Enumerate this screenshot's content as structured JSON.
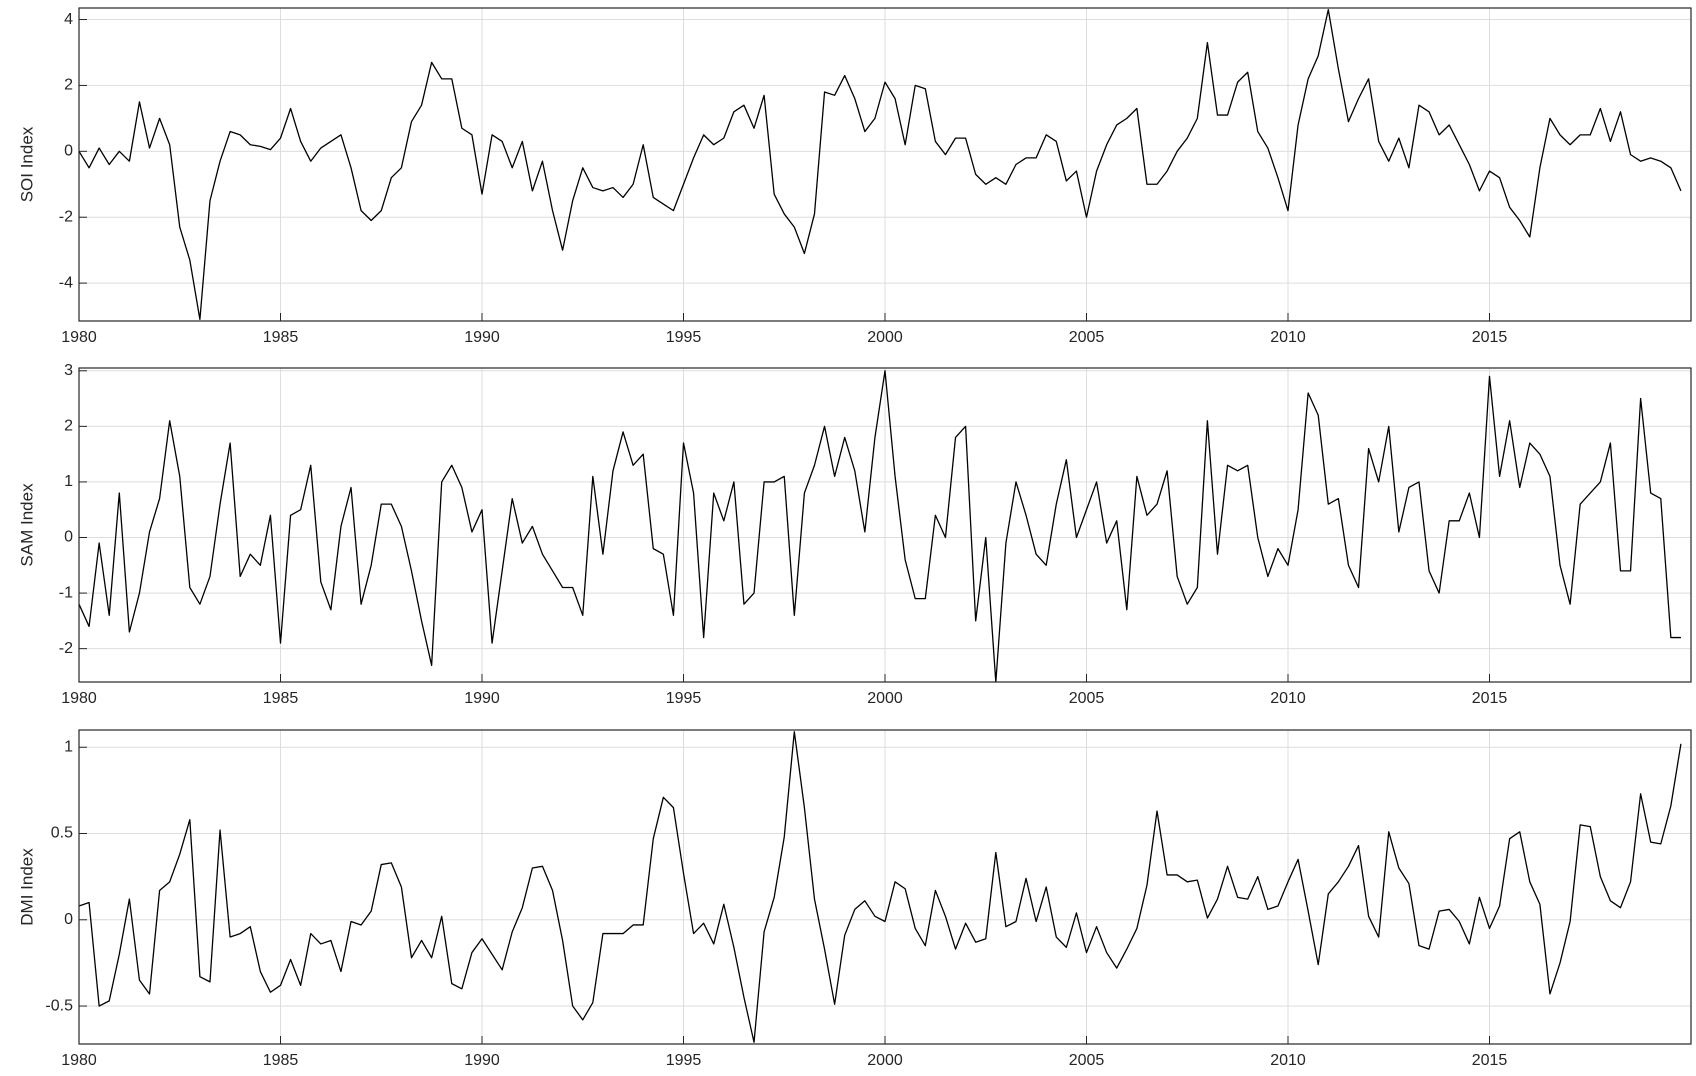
{
  "chart_data": [
    {
      "type": "line",
      "ylabel": "SOI Index",
      "color": "#000000",
      "grid": true,
      "xlim": [
        1980,
        2020
      ],
      "xticks": [
        1980,
        1985,
        1990,
        1995,
        2000,
        2005,
        2010,
        2015
      ],
      "ylim": [
        -5.15,
        4.35
      ],
      "yticks": [
        -4,
        -2,
        0,
        2,
        4
      ],
      "x": [
        1980,
        1980.25,
        1980.5,
        1980.75,
        1981,
        1981.25,
        1981.5,
        1981.75,
        1982,
        1982.25,
        1982.5,
        1982.75,
        1983,
        1983.25,
        1983.5,
        1983.75,
        1984,
        1984.25,
        1984.5,
        1984.75,
        1985,
        1985.25,
        1985.5,
        1985.75,
        1986,
        1986.25,
        1986.5,
        1986.75,
        1987,
        1987.25,
        1987.5,
        1987.75,
        1988,
        1988.25,
        1988.5,
        1988.75,
        1989,
        1989.25,
        1989.5,
        1989.75,
        1990,
        1990.25,
        1990.5,
        1990.75,
        1991,
        1991.25,
        1991.5,
        1991.75,
        1992,
        1992.25,
        1992.5,
        1992.75,
        1993,
        1993.25,
        1993.5,
        1993.75,
        1994,
        1994.25,
        1994.5,
        1994.75,
        1995,
        1995.25,
        1995.5,
        1995.75,
        1996,
        1996.25,
        1996.5,
        1996.75,
        1997,
        1997.25,
        1997.5,
        1997.75,
        1998,
        1998.25,
        1998.5,
        1998.75,
        1999,
        1999.25,
        1999.5,
        1999.75,
        2000,
        2000.25,
        2000.5,
        2000.75,
        2001,
        2001.25,
        2001.5,
        2001.75,
        2002,
        2002.25,
        2002.5,
        2002.75,
        2003,
        2003.25,
        2003.5,
        2003.75,
        2004,
        2004.25,
        2004.5,
        2004.75,
        2005,
        2005.25,
        2005.5,
        2005.75,
        2006,
        2006.25,
        2006.5,
        2006.75,
        2007,
        2007.25,
        2007.5,
        2007.75,
        2008,
        2008.25,
        2008.5,
        2008.75,
        2009,
        2009.25,
        2009.5,
        2009.75,
        2010,
        2010.25,
        2010.5,
        2010.75,
        2011,
        2011.25,
        2011.5,
        2011.75,
        2012,
        2012.25,
        2012.5,
        2012.75,
        2013,
        2013.25,
        2013.5,
        2013.75,
        2014,
        2014.25,
        2014.5,
        2014.75,
        2015,
        2015.25,
        2015.5,
        2015.75,
        2016,
        2016.25,
        2016.5,
        2016.75,
        2017,
        2017.25,
        2017.5,
        2017.75,
        2018,
        2018.25,
        2018.5,
        2018.75,
        2019,
        2019.25,
        2019.5,
        2019.75
      ],
      "values": [
        0,
        -0.5,
        0.1,
        -0.4,
        0,
        -0.3,
        1.5,
        0.1,
        1.0,
        0.2,
        -2.3,
        -3.3,
        -5.1,
        -1.5,
        -0.3,
        0.6,
        0.5,
        0.2,
        0.15,
        0.05,
        0.4,
        1.3,
        0.3,
        -0.3,
        0.1,
        0.3,
        0.5,
        -0.5,
        -1.8,
        -2.1,
        -1.8,
        -0.8,
        -0.5,
        0.9,
        1.4,
        2.7,
        2.2,
        2.2,
        0.7,
        0.5,
        -1.3,
        0.5,
        0.3,
        -0.5,
        0.3,
        -1.2,
        -0.3,
        -1.8,
        -3.0,
        -1.5,
        -0.5,
        -1.1,
        -1.2,
        -1.1,
        -1.4,
        -1.0,
        0.2,
        -1.4,
        -1.6,
        -1.8,
        -1.0,
        -0.2,
        0.5,
        0.2,
        0.4,
        1.2,
        1.4,
        0.7,
        1.7,
        -1.3,
        -1.9,
        -2.3,
        -3.1,
        -1.9,
        1.8,
        1.7,
        2.3,
        1.6,
        0.6,
        1.0,
        2.1,
        1.6,
        0.2,
        2.0,
        1.9,
        0.3,
        -0.1,
        0.4,
        0.4,
        -0.7,
        -1.0,
        -0.8,
        -1.0,
        -0.4,
        -0.2,
        -0.2,
        0.5,
        0.3,
        -0.9,
        -0.6,
        -2.0,
        -0.6,
        0.2,
        0.8,
        1.0,
        1.3,
        -1.0,
        -1.0,
        -0.6,
        0,
        0.4,
        1.0,
        3.3,
        1.1,
        1.1,
        2.1,
        2.4,
        0.6,
        0.1,
        -0.8,
        -1.8,
        0.8,
        2.2,
        2.9,
        4.3,
        2.5,
        0.9,
        1.6,
        2.2,
        0.3,
        -0.3,
        0.4,
        -0.5,
        1.4,
        1.2,
        0.5,
        0.8,
        0.2,
        -0.4,
        -1.2,
        -0.6,
        -0.8,
        -1.7,
        -2.1,
        -2.6,
        -0.5,
        1.0,
        0.5,
        0.2,
        0.5,
        0.5,
        1.3,
        0.3,
        1.2,
        -0.1,
        -0.3,
        -0.2,
        -0.3,
        -0.5,
        -1.2
      ]
    },
    {
      "type": "line",
      "ylabel": "SAM Index",
      "color": "#000000",
      "grid": true,
      "xlim": [
        1980,
        2020
      ],
      "xticks": [
        1980,
        1985,
        1990,
        1995,
        2000,
        2005,
        2010,
        2015
      ],
      "ylim": [
        -2.6,
        3.05
      ],
      "yticks": [
        -2,
        -1,
        0,
        1,
        2,
        3
      ],
      "x": [
        1980,
        1980.25,
        1980.5,
        1980.75,
        1981,
        1981.25,
        1981.5,
        1981.75,
        1982,
        1982.25,
        1982.5,
        1982.75,
        1983,
        1983.25,
        1983.5,
        1983.75,
        1984,
        1984.25,
        1984.5,
        1984.75,
        1985,
        1985.25,
        1985.5,
        1985.75,
        1986,
        1986.25,
        1986.5,
        1986.75,
        1987,
        1987.25,
        1987.5,
        1987.75,
        1988,
        1988.25,
        1988.5,
        1988.75,
        1989,
        1989.25,
        1989.5,
        1989.75,
        1990,
        1990.25,
        1990.5,
        1990.75,
        1991,
        1991.25,
        1991.5,
        1991.75,
        1992,
        1992.25,
        1992.5,
        1992.75,
        1993,
        1993.25,
        1993.5,
        1993.75,
        1994,
        1994.25,
        1994.5,
        1994.75,
        1995,
        1995.25,
        1995.5,
        1995.75,
        1996,
        1996.25,
        1996.5,
        1996.75,
        1997,
        1997.25,
        1997.5,
        1997.75,
        1998,
        1998.25,
        1998.5,
        1998.75,
        1999,
        1999.25,
        1999.5,
        1999.75,
        2000,
        2000.25,
        2000.5,
        2000.75,
        2001,
        2001.25,
        2001.5,
        2001.75,
        2002,
        2002.25,
        2002.5,
        2002.75,
        2003,
        2003.25,
        2003.5,
        2003.75,
        2004,
        2004.25,
        2004.5,
        2004.75,
        2005,
        2005.25,
        2005.5,
        2005.75,
        2006,
        2006.25,
        2006.5,
        2006.75,
        2007,
        2007.25,
        2007.5,
        2007.75,
        2008,
        2008.25,
        2008.5,
        2008.75,
        2009,
        2009.25,
        2009.5,
        2009.75,
        2010,
        2010.25,
        2010.5,
        2010.75,
        2011,
        2011.25,
        2011.5,
        2011.75,
        2012,
        2012.25,
        2012.5,
        2012.75,
        2013,
        2013.25,
        2013.5,
        2013.75,
        2014,
        2014.25,
        2014.5,
        2014.75,
        2015,
        2015.25,
        2015.5,
        2015.75,
        2016,
        2016.25,
        2016.5,
        2016.75,
        2017,
        2017.25,
        2017.5,
        2017.75,
        2018,
        2018.25,
        2018.5,
        2018.75,
        2019,
        2019.25,
        2019.5,
        2019.75
      ],
      "values": [
        -1.2,
        -1.6,
        -0.1,
        -1.4,
        0.8,
        -1.7,
        -1.0,
        0.1,
        0.7,
        2.1,
        1.1,
        -0.9,
        -1.2,
        -0.7,
        0.6,
        1.7,
        -0.7,
        -0.3,
        -0.5,
        0.4,
        -1.9,
        0.4,
        0.5,
        1.3,
        -0.8,
        -1.3,
        0.2,
        0.9,
        -1.2,
        -0.5,
        0.6,
        0.6,
        0.2,
        -0.6,
        -1.5,
        -2.3,
        1.0,
        1.3,
        0.9,
        0.1,
        0.5,
        -1.9,
        -0.6,
        0.7,
        -0.1,
        0.2,
        -0.3,
        -0.6,
        -0.9,
        -0.9,
        -1.4,
        1.1,
        -0.3,
        1.2,
        1.9,
        1.3,
        1.5,
        -0.2,
        -0.3,
        -1.4,
        1.7,
        0.8,
        -1.8,
        0.8,
        0.3,
        1.0,
        -1.2,
        -1.0,
        1.0,
        1.0,
        1.1,
        -1.4,
        0.8,
        1.3,
        2.0,
        1.1,
        1.8,
        1.2,
        0.1,
        1.8,
        3.0,
        1.1,
        -0.4,
        -1.1,
        -1.1,
        0.4,
        0.0,
        1.8,
        2.0,
        -1.5,
        0.0,
        -2.6,
        -0.1,
        1.0,
        0.4,
        -0.3,
        -0.5,
        0.6,
        1.4,
        0.0,
        0.5,
        1.0,
        -0.1,
        0.3,
        -1.3,
        1.1,
        0.4,
        0.6,
        1.2,
        -0.7,
        -1.2,
        -0.9,
        2.1,
        -0.3,
        1.3,
        1.2,
        1.3,
        0.0,
        -0.7,
        -0.2,
        -0.5,
        0.5,
        2.6,
        2.2,
        0.6,
        0.7,
        -0.5,
        -0.9,
        1.6,
        1.0,
        2.0,
        0.1,
        0.9,
        1.0,
        -0.6,
        -1.0,
        0.3,
        0.3,
        0.8,
        0.0,
        2.9,
        1.1,
        2.1,
        0.9,
        1.7,
        1.5,
        1.1,
        -0.5,
        -1.2,
        0.6,
        0.8,
        1.0,
        1.7,
        -0.6,
        -0.6,
        2.5,
        0.8,
        0.7,
        -1.8,
        -1.8
      ]
    },
    {
      "type": "line",
      "ylabel": "DMI Index",
      "color": "#000000",
      "grid": true,
      "xlim": [
        1980,
        2020
      ],
      "xticks": [
        1980,
        1985,
        1990,
        1995,
        2000,
        2005,
        2010,
        2015
      ],
      "ylim": [
        -0.72,
        1.1
      ],
      "yticks": [
        -0.5,
        0,
        0.5,
        1
      ],
      "x": [
        1980,
        1980.25,
        1980.5,
        1980.75,
        1981,
        1981.25,
        1981.5,
        1981.75,
        1982,
        1982.25,
        1982.5,
        1982.75,
        1983,
        1983.25,
        1983.5,
        1983.75,
        1984,
        1984.25,
        1984.5,
        1984.75,
        1985,
        1985.25,
        1985.5,
        1985.75,
        1986,
        1986.25,
        1986.5,
        1986.75,
        1987,
        1987.25,
        1987.5,
        1987.75,
        1988,
        1988.25,
        1988.5,
        1988.75,
        1989,
        1989.25,
        1989.5,
        1989.75,
        1990,
        1990.25,
        1990.5,
        1990.75,
        1991,
        1991.25,
        1991.5,
        1991.75,
        1992,
        1992.25,
        1992.5,
        1992.75,
        1993,
        1993.25,
        1993.5,
        1993.75,
        1994,
        1994.25,
        1994.5,
        1994.75,
        1995,
        1995.25,
        1995.5,
        1995.75,
        1996,
        1996.25,
        1996.5,
        1996.75,
        1997,
        1997.25,
        1997.5,
        1997.75,
        1998,
        1998.25,
        1998.5,
        1998.75,
        1999,
        1999.25,
        1999.5,
        1999.75,
        2000,
        2000.25,
        2000.5,
        2000.75,
        2001,
        2001.25,
        2001.5,
        2001.75,
        2002,
        2002.25,
        2002.5,
        2002.75,
        2003,
        2003.25,
        2003.5,
        2003.75,
        2004,
        2004.25,
        2004.5,
        2004.75,
        2005,
        2005.25,
        2005.5,
        2005.75,
        2006,
        2006.25,
        2006.5,
        2006.75,
        2007,
        2007.25,
        2007.5,
        2007.75,
        2008,
        2008.25,
        2008.5,
        2008.75,
        2009,
        2009.25,
        2009.5,
        2009.75,
        2010,
        2010.25,
        2010.5,
        2010.75,
        2011,
        2011.25,
        2011.5,
        2011.75,
        2012,
        2012.25,
        2012.5,
        2012.75,
        2013,
        2013.25,
        2013.5,
        2013.75,
        2014,
        2014.25,
        2014.5,
        2014.75,
        2015,
        2015.25,
        2015.5,
        2015.75,
        2016,
        2016.25,
        2016.5,
        2016.75,
        2017,
        2017.25,
        2017.5,
        2017.75,
        2018,
        2018.25,
        2018.5,
        2018.75,
        2019,
        2019.25,
        2019.5,
        2019.75
      ],
      "values": [
        0.08,
        0.1,
        -0.5,
        -0.47,
        -0.2,
        0.12,
        -0.35,
        -0.43,
        0.17,
        0.22,
        0.38,
        0.58,
        -0.33,
        -0.36,
        0.52,
        -0.1,
        -0.08,
        -0.04,
        -0.3,
        -0.42,
        -0.38,
        -0.23,
        -0.38,
        -0.08,
        -0.14,
        -0.12,
        -0.3,
        -0.01,
        -0.03,
        0.05,
        0.32,
        0.33,
        0.19,
        -0.22,
        -0.12,
        -0.22,
        0.02,
        -0.37,
        -0.4,
        -0.19,
        -0.11,
        -0.2,
        -0.29,
        -0.07,
        0.07,
        0.3,
        0.31,
        0.17,
        -0.12,
        -0.5,
        -0.58,
        -0.48,
        -0.08,
        -0.08,
        -0.08,
        -0.03,
        -0.03,
        0.47,
        0.71,
        0.65,
        0.27,
        -0.08,
        -0.02,
        -0.14,
        0.09,
        -0.16,
        -0.45,
        -0.71,
        -0.07,
        0.13,
        0.48,
        1.09,
        0.65,
        0.12,
        -0.17,
        -0.49,
        -0.09,
        0.06,
        0.11,
        0.02,
        -0.01,
        0.22,
        0.18,
        -0.05,
        -0.15,
        0.17,
        0.02,
        -0.17,
        -0.02,
        -0.13,
        -0.11,
        0.39,
        -0.04,
        -0.01,
        0.24,
        -0.01,
        0.19,
        -0.1,
        -0.16,
        0.04,
        -0.19,
        -0.04,
        -0.19,
        -0.28,
        -0.17,
        -0.05,
        0.2,
        0.63,
        0.26,
        0.26,
        0.22,
        0.23,
        0.01,
        0.12,
        0.31,
        0.13,
        0.12,
        0.25,
        0.06,
        0.08,
        0.22,
        0.35,
        0.05,
        -0.26,
        0.15,
        0.22,
        0.31,
        0.43,
        0.02,
        -0.1,
        0.51,
        0.3,
        0.21,
        -0.15,
        -0.17,
        0.05,
        0.06,
        -0.01,
        -0.14,
        0.13,
        -0.05,
        0.08,
        0.47,
        0.51,
        0.22,
        0.09,
        -0.43,
        -0.25,
        -0.01,
        0.55,
        0.54,
        0.25,
        0.11,
        0.07,
        0.22,
        0.73,
        0.45,
        0.44,
        0.66,
        1.02
      ]
    }
  ]
}
